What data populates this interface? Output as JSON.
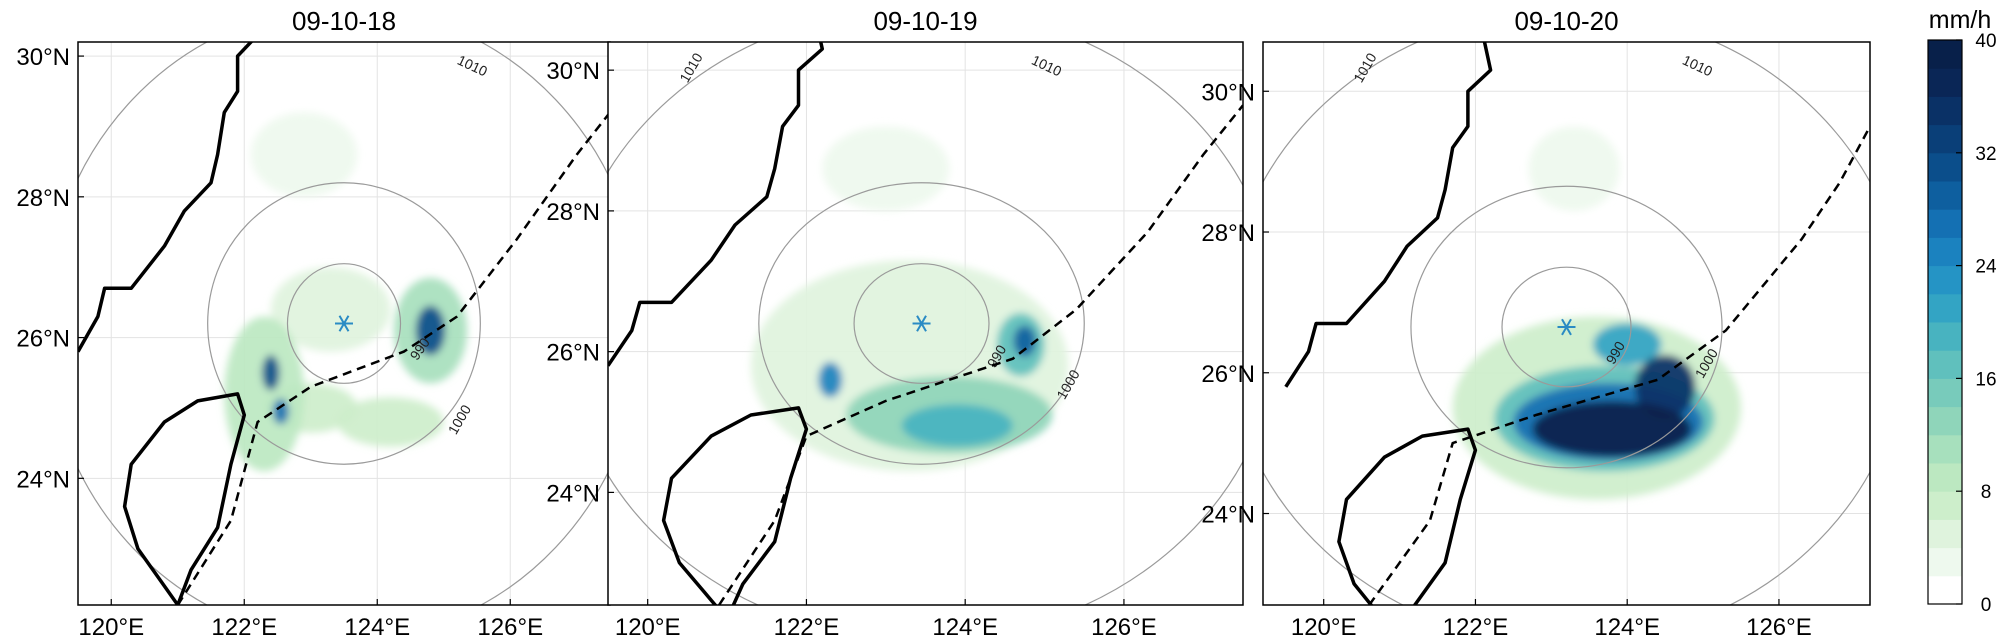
{
  "chart_data": {
    "type": "contour-map",
    "colormap": [
      "#ffffff",
      "#eef9ee",
      "#dff3dd",
      "#cdeecb",
      "#bce8c1",
      "#a7e0bd",
      "#8fd5ba",
      "#78cbbb",
      "#60c0bd",
      "#48b3c0",
      "#33a4c4",
      "#2594c5",
      "#1b82bf",
      "#1470b3",
      "#0e5f9f",
      "#0b4e8b",
      "#0a3f78",
      "#0a3166",
      "#0a2656",
      "#08204a"
    ],
    "colorbar": {
      "title": "mm/h",
      "ticks": [
        0,
        8,
        16,
        24,
        32,
        40
      ],
      "tick_labels": [
        "0",
        "8",
        "16",
        "24",
        "32",
        "40"
      ],
      "range": [
        0,
        40
      ],
      "step": 2
    },
    "panels": [
      {
        "title": "09-10-18",
        "xlim": [
          119.5,
          127.5
        ],
        "ylim": [
          22.2,
          30.2
        ],
        "xticks": [
          120,
          122,
          124,
          126
        ],
        "xtick_labels": [
          "120°E",
          "122°E",
          "124°E",
          "126°E"
        ],
        "yticks": [
          24,
          26,
          28,
          30
        ],
        "ytick_labels": [
          "24°N",
          "26°N",
          "28°N",
          "30°N"
        ],
        "center": [
          123.5,
          26.2
        ],
        "isobars": [
          {
            "label": "990",
            "rx": 0.85,
            "ry": 0.85,
            "label_pos": [
              124.7,
              25.8
            ],
            "label_angle": -55
          },
          {
            "label": "1000",
            "rx": 2.05,
            "ry": 2.0,
            "label_pos": [
              125.3,
              24.8
            ],
            "label_angle": -60
          },
          {
            "label": "1010",
            "rx": 4.5,
            "ry": 4.5,
            "label_pos": [
              125.4,
              29.8
            ],
            "label_angle": 25
          }
        ],
        "track": [
          [
            121.0,
            22.2
          ],
          [
            121.8,
            23.4
          ],
          [
            122.2,
            24.8
          ],
          [
            123.0,
            25.3
          ],
          [
            124.4,
            25.8
          ],
          [
            125.2,
            26.3
          ],
          [
            126.1,
            27.4
          ],
          [
            127.0,
            28.6
          ],
          [
            127.5,
            29.2
          ]
        ],
        "rain_cells": [
          {
            "x": 122.3,
            "y": 25.2,
            "rx": 0.6,
            "ry": 1.1,
            "v": 8
          },
          {
            "x": 122.4,
            "y": 25.5,
            "rx": 0.13,
            "ry": 0.25,
            "v": 30
          },
          {
            "x": 122.55,
            "y": 24.95,
            "rx": 0.12,
            "ry": 0.18,
            "v": 26
          },
          {
            "x": 124.8,
            "y": 26.1,
            "rx": 0.55,
            "ry": 0.75,
            "v": 10
          },
          {
            "x": 124.8,
            "y": 26.1,
            "rx": 0.22,
            "ry": 0.35,
            "v": 30
          },
          {
            "x": 123.3,
            "y": 26.4,
            "rx": 0.9,
            "ry": 0.6,
            "v": 4
          },
          {
            "x": 122.9,
            "y": 28.6,
            "rx": 0.8,
            "ry": 0.6,
            "v": 3
          },
          {
            "x": 124.2,
            "y": 24.8,
            "rx": 0.8,
            "ry": 0.35,
            "v": 6
          },
          {
            "x": 123.0,
            "y": 25.0,
            "rx": 0.7,
            "ry": 0.35,
            "v": 6
          }
        ]
      },
      {
        "title": "09-10-19",
        "xlim": [
          119.5,
          127.5
        ],
        "ylim": [
          22.4,
          30.4
        ],
        "xticks": [
          120,
          122,
          124,
          126
        ],
        "xtick_labels": [
          "120°E",
          "122°E",
          "124°E",
          "126°E"
        ],
        "yticks": [
          24,
          26,
          28,
          30
        ],
        "ytick_labels": [
          "24°N",
          "26°N",
          "28°N",
          "30°N"
        ],
        "center": [
          123.45,
          26.4
        ],
        "isobars": [
          {
            "label": "990",
            "rx": 0.85,
            "ry": 0.85,
            "label_pos": [
              124.45,
              25.9
            ],
            "label_angle": -60
          },
          {
            "label": "1000",
            "rx": 2.05,
            "ry": 2.0,
            "label_pos": [
              125.35,
              25.5
            ],
            "label_angle": -60
          },
          {
            "label": "1010",
            "rx": 4.5,
            "ry": 4.5,
            "label_pos": [
              125.0,
              30.0
            ],
            "label_angle": 25
          },
          {
            "label": "1010",
            "rx": 4.5,
            "ry": 4.5,
            "label_pos": [
              120.6,
              30.0
            ],
            "label_angle": -60
          }
        ],
        "track": [
          [
            120.9,
            22.4
          ],
          [
            121.6,
            23.6
          ],
          [
            122.0,
            24.8
          ],
          [
            123.0,
            25.3
          ],
          [
            124.6,
            25.9
          ],
          [
            125.4,
            26.6
          ],
          [
            126.3,
            27.7
          ],
          [
            127.0,
            28.8
          ],
          [
            127.5,
            29.5
          ]
        ],
        "rain_cells": [
          {
            "x": 123.3,
            "y": 25.8,
            "rx": 2.0,
            "ry": 1.5,
            "v": 5
          },
          {
            "x": 123.8,
            "y": 25.1,
            "rx": 1.3,
            "ry": 0.55,
            "v": 12
          },
          {
            "x": 123.9,
            "y": 24.95,
            "rx": 0.7,
            "ry": 0.3,
            "v": 18
          },
          {
            "x": 124.7,
            "y": 26.1,
            "rx": 0.3,
            "ry": 0.45,
            "v": 16
          },
          {
            "x": 124.75,
            "y": 26.15,
            "rx": 0.14,
            "ry": 0.22,
            "v": 28
          },
          {
            "x": 122.3,
            "y": 25.6,
            "rx": 0.15,
            "ry": 0.25,
            "v": 24
          },
          {
            "x": 123.0,
            "y": 28.6,
            "rx": 0.8,
            "ry": 0.6,
            "v": 3
          }
        ]
      },
      {
        "title": "09-10-20",
        "xlim": [
          119.2,
          127.2
        ],
        "ylim": [
          22.7,
          30.7
        ],
        "xticks": [
          120,
          122,
          124,
          126
        ],
        "xtick_labels": [
          "120°E",
          "122°E",
          "124°E",
          "126°E"
        ],
        "yticks": [
          24,
          26,
          28,
          30
        ],
        "ytick_labels": [
          "24°N",
          "26°N",
          "28°N",
          "30°N"
        ],
        "center": [
          123.2,
          26.65
        ],
        "isobars": [
          {
            "label": "990",
            "rx": 0.85,
            "ry": 0.85,
            "label_pos": [
              123.9,
              26.25
            ],
            "label_angle": -60
          },
          {
            "label": "1000",
            "rx": 2.05,
            "ry": 2.0,
            "label_pos": [
              125.1,
              26.1
            ],
            "label_angle": -60
          },
          {
            "label": "1010",
            "rx": 4.5,
            "ry": 4.5,
            "label_pos": [
              124.9,
              30.3
            ],
            "label_angle": 25
          },
          {
            "label": "1010",
            "rx": 4.5,
            "ry": 4.5,
            "label_pos": [
              120.6,
              30.3
            ],
            "label_angle": -60
          }
        ],
        "track": [
          [
            120.6,
            22.7
          ],
          [
            121.4,
            23.9
          ],
          [
            121.7,
            25.0
          ],
          [
            122.8,
            25.4
          ],
          [
            124.4,
            25.9
          ],
          [
            125.3,
            26.6
          ],
          [
            126.3,
            27.9
          ],
          [
            126.8,
            28.7
          ],
          [
            127.2,
            29.5
          ]
        ],
        "rain_cells": [
          {
            "x": 123.6,
            "y": 25.5,
            "rx": 1.9,
            "ry": 1.3,
            "v": 6
          },
          {
            "x": 123.7,
            "y": 25.35,
            "rx": 1.45,
            "ry": 0.75,
            "v": 16
          },
          {
            "x": 123.75,
            "y": 25.3,
            "rx": 1.25,
            "ry": 0.55,
            "v": 26
          },
          {
            "x": 123.8,
            "y": 25.2,
            "rx": 1.05,
            "ry": 0.4,
            "v": 38
          },
          {
            "x": 124.5,
            "y": 25.8,
            "rx": 0.4,
            "ry": 0.45,
            "v": 34
          },
          {
            "x": 124.0,
            "y": 26.4,
            "rx": 0.45,
            "ry": 0.3,
            "v": 20
          },
          {
            "x": 123.3,
            "y": 28.9,
            "rx": 0.6,
            "ry": 0.6,
            "v": 3
          }
        ]
      }
    ]
  }
}
